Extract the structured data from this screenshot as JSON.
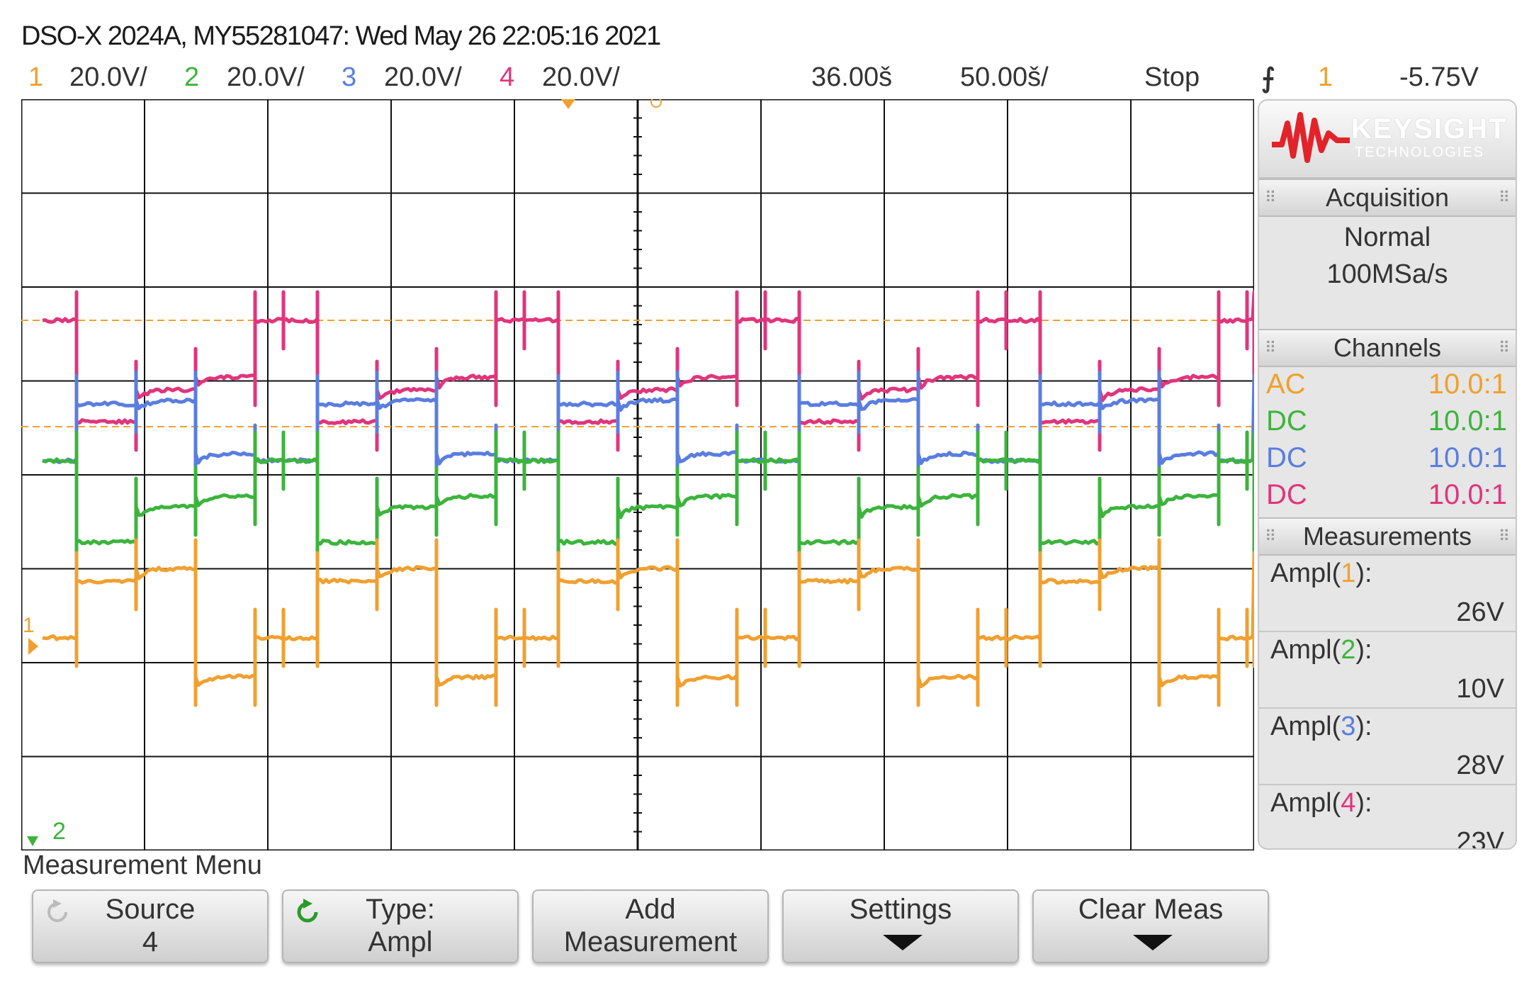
{
  "header": {
    "title": "DSO-X 2024A, MY55281047: Wed May 26 22:05:16 2021",
    "ch1_num": "1",
    "ch1_scale": "20.0V/",
    "ch2_num": "2",
    "ch2_scale": "20.0V/",
    "ch3_num": "3",
    "ch3_scale": "20.0V/",
    "ch4_num": "4",
    "ch4_scale": "20.0V/",
    "delay": "36.00š",
    "timebase": "50.00š/",
    "run_state": "Stop",
    "trigger_icon": "trigger-edge-icon",
    "trigger_source": "1",
    "trigger_level": "-5.75V"
  },
  "colors": {
    "ch1": "#f0a030",
    "ch2": "#3cb43c",
    "ch3": "#5a7de0",
    "ch4": "#e0357d",
    "grid": "#111111"
  },
  "screen": {
    "ground_marker_1": "1",
    "ground_marker_2": "2"
  },
  "panel": {
    "brand": "KEYSIGHT",
    "brand_sub": "TECHNOLOGIES",
    "acquisition_title": "Acquisition",
    "acq_mode": "Normal",
    "acq_rate": "100MSa/s",
    "channels_title": "Channels",
    "channels": [
      {
        "coupling": "AC",
        "probe": "10.0:1"
      },
      {
        "coupling": "DC",
        "probe": "10.0:1"
      },
      {
        "coupling": "DC",
        "probe": "10.0:1"
      },
      {
        "coupling": "DC",
        "probe": "10.0:1"
      }
    ],
    "measurements_title": "Measurements",
    "measurements": [
      {
        "label_pre": "Ampl(",
        "src": "1",
        "label_post": "):",
        "value": "26V"
      },
      {
        "label_pre": "Ampl(",
        "src": "2",
        "label_post": "):",
        "value": "10V"
      },
      {
        "label_pre": "Ampl(",
        "src": "3",
        "label_post": "):",
        "value": "28V"
      },
      {
        "label_pre": "Ampl(",
        "src": "4",
        "label_post": "):",
        "value": "23V"
      }
    ]
  },
  "menu": {
    "title": "Measurement Menu",
    "softkeys": [
      {
        "line1": "Source",
        "line2": "4"
      },
      {
        "line1": "Type:",
        "line2": "Ampl"
      },
      {
        "line1": "Add",
        "line2": "Measurement"
      },
      {
        "line1": "Settings",
        "line2": ""
      },
      {
        "line1": "Clear Meas",
        "line2": ""
      }
    ]
  }
}
